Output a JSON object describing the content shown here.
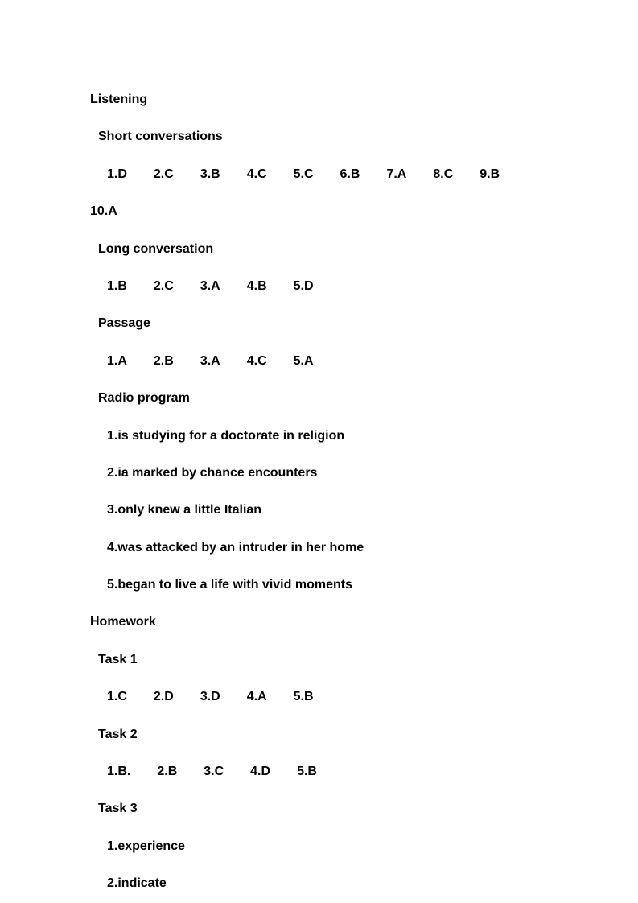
{
  "listening": {
    "title": "Listening",
    "short_conv": {
      "label": "Short conversations",
      "answers1": [
        "1.D",
        "2.C",
        "3.B",
        "4.C",
        "5.C",
        "6.B",
        "7.A",
        "8.C",
        "9.B"
      ],
      "answers2": "10.A"
    },
    "long_conv": {
      "label": "Long conversation",
      "answers": [
        "1.B",
        "2.C",
        "3.A",
        "4.B",
        "5.D"
      ]
    },
    "passage": {
      "label": "Passage",
      "answers": [
        "1.A",
        "2.B",
        "3.A",
        "4.C",
        "5.A"
      ]
    },
    "radio": {
      "label": "Radio program",
      "items": [
        "1.is studying for a doctorate in religion",
        "2.ia marked by chance encounters",
        "3.only knew a little Italian",
        "4.was attacked by an intruder in her home",
        "5.began to live a life with vivid moments"
      ]
    }
  },
  "homework": {
    "title": "Homework",
    "task1": {
      "label": "Task 1",
      "answers": [
        "1.C",
        "2.D",
        "3.D",
        "4.A",
        "5.B"
      ]
    },
    "task2": {
      "label": "Task 2",
      "answers": [
        "1.B.",
        "2.B",
        "3.C",
        "4.D",
        "5.B"
      ]
    },
    "task3": {
      "label": "Task 3",
      "items": [
        "1.experience",
        "2.indicate"
      ]
    }
  }
}
